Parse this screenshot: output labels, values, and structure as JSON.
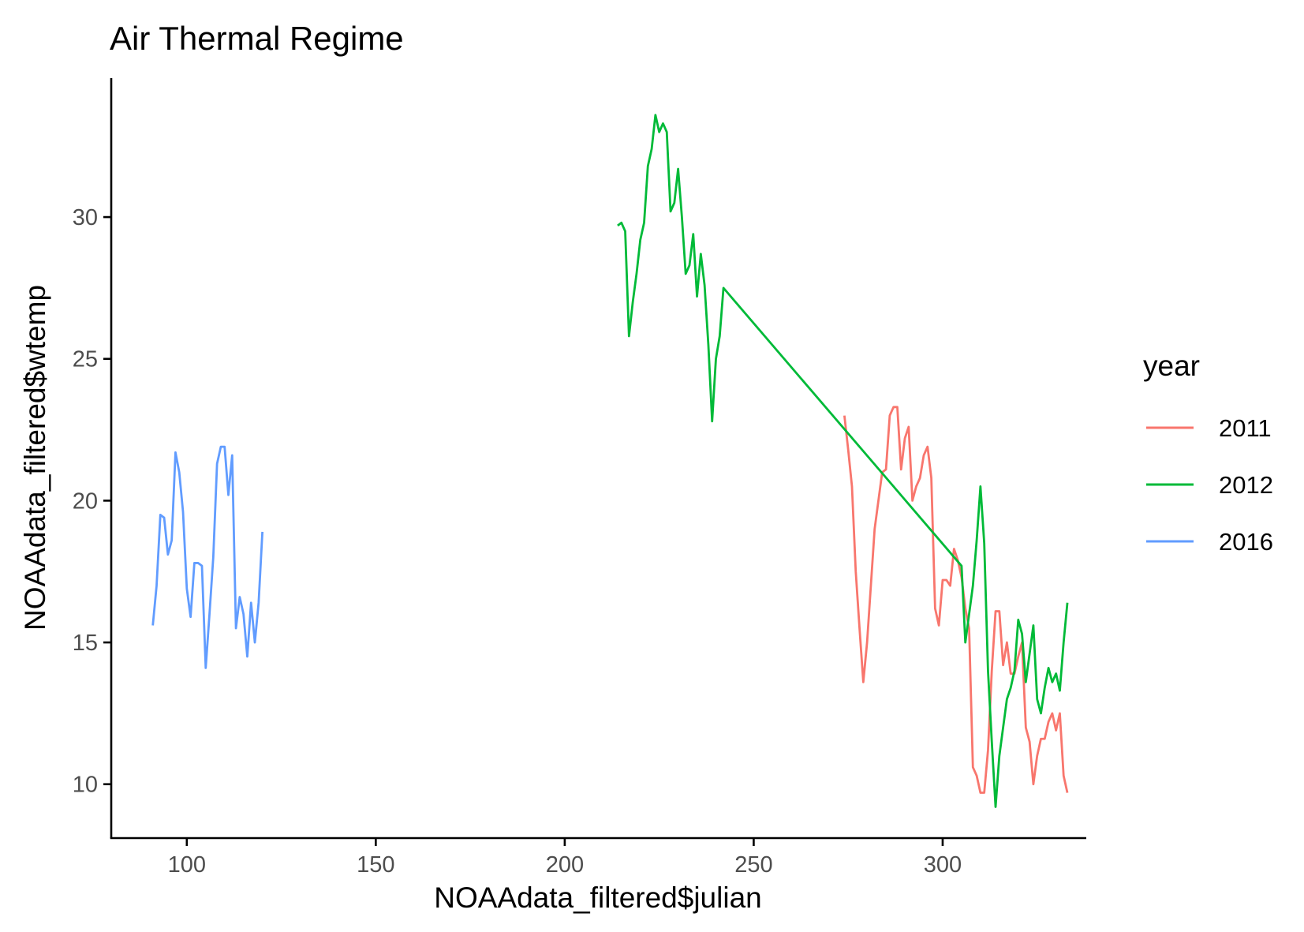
{
  "chart_data": {
    "type": "line",
    "title": "Air Thermal Regime",
    "xlabel": "NOAAdata_filtered$julian",
    "ylabel": "NOAAdata_filtered$wtemp",
    "xlim": [
      80,
      338
    ],
    "ylim": [
      8.1,
      34.9
    ],
    "x_ticks": [
      100,
      150,
      200,
      250,
      300
    ],
    "y_ticks": [
      10,
      15,
      20,
      25,
      30
    ],
    "grid": false,
    "legend": {
      "title": "year",
      "position": "right"
    },
    "series": [
      {
        "name": "2011",
        "color": "#F8766D",
        "points": [
          [
            274,
            23.0
          ],
          [
            275,
            21.8
          ],
          [
            276,
            20.5
          ],
          [
            277,
            17.5
          ],
          [
            278,
            15.5
          ],
          [
            279,
            13.6
          ],
          [
            280,
            15.0
          ],
          [
            281,
            17.0
          ],
          [
            282,
            19.0
          ],
          [
            283,
            20.0
          ],
          [
            284,
            21.0
          ],
          [
            285,
            21.1
          ],
          [
            286,
            23.0
          ],
          [
            287,
            23.3
          ],
          [
            288,
            23.3
          ],
          [
            289,
            21.1
          ],
          [
            290,
            22.2
          ],
          [
            291,
            22.6
          ],
          [
            292,
            20.0
          ],
          [
            293,
            20.5
          ],
          [
            294,
            20.8
          ],
          [
            295,
            21.6
          ],
          [
            296,
            21.9
          ],
          [
            297,
            20.8
          ],
          [
            298,
            16.2
          ],
          [
            299,
            15.6
          ],
          [
            300,
            17.2
          ],
          [
            301,
            17.2
          ],
          [
            302,
            17.0
          ],
          [
            303,
            18.3
          ],
          [
            304,
            17.9
          ],
          [
            305,
            17.3
          ],
          [
            306,
            16.2
          ],
          [
            307,
            15.5
          ],
          [
            308,
            10.6
          ],
          [
            309,
            10.3
          ],
          [
            310,
            9.7
          ],
          [
            311,
            9.7
          ],
          [
            312,
            11.2
          ],
          [
            313,
            14.0
          ],
          [
            314,
            16.1
          ],
          [
            315,
            16.1
          ],
          [
            316,
            14.2
          ],
          [
            317,
            15.0
          ],
          [
            318,
            13.9
          ],
          [
            319,
            13.9
          ],
          [
            320,
            14.5
          ],
          [
            321,
            15.0
          ],
          [
            322,
            12.0
          ],
          [
            323,
            11.5
          ],
          [
            324,
            10.0
          ],
          [
            325,
            11.0
          ],
          [
            326,
            11.6
          ],
          [
            327,
            11.6
          ],
          [
            328,
            12.2
          ],
          [
            329,
            12.5
          ],
          [
            330,
            11.9
          ],
          [
            331,
            12.5
          ],
          [
            332,
            10.3
          ],
          [
            333,
            9.7
          ]
        ]
      },
      {
        "name": "2012",
        "color": "#00BA38",
        "points": [
          [
            214,
            29.7
          ],
          [
            215,
            29.8
          ],
          [
            216,
            29.5
          ],
          [
            217,
            25.8
          ],
          [
            218,
            27.0
          ],
          [
            219,
            28.0
          ],
          [
            220,
            29.2
          ],
          [
            221,
            29.8
          ],
          [
            222,
            31.8
          ],
          [
            223,
            32.4
          ],
          [
            224,
            33.6
          ],
          [
            225,
            33.0
          ],
          [
            226,
            33.3
          ],
          [
            227,
            33.0
          ],
          [
            228,
            30.2
          ],
          [
            229,
            30.5
          ],
          [
            230,
            31.7
          ],
          [
            231,
            30.0
          ],
          [
            232,
            28.0
          ],
          [
            233,
            28.3
          ],
          [
            234,
            29.4
          ],
          [
            235,
            27.2
          ],
          [
            236,
            28.7
          ],
          [
            237,
            27.6
          ],
          [
            238,
            25.5
          ],
          [
            239,
            22.8
          ],
          [
            240,
            25.0
          ],
          [
            241,
            25.8
          ],
          [
            242,
            27.5
          ],
          [
            305,
            17.7
          ],
          [
            306,
            15.0
          ],
          [
            307,
            16.0
          ],
          [
            308,
            17.0
          ],
          [
            309,
            18.6
          ],
          [
            310,
            20.5
          ],
          [
            311,
            18.5
          ],
          [
            312,
            14.0
          ],
          [
            313,
            11.5
          ],
          [
            314,
            9.2
          ],
          [
            315,
            11.0
          ],
          [
            316,
            12.0
          ],
          [
            317,
            13.0
          ],
          [
            318,
            13.4
          ],
          [
            319,
            14.0
          ],
          [
            320,
            15.8
          ],
          [
            321,
            15.3
          ],
          [
            322,
            13.6
          ],
          [
            323,
            14.6
          ],
          [
            324,
            15.6
          ],
          [
            325,
            13.0
          ],
          [
            326,
            12.5
          ],
          [
            327,
            13.4
          ],
          [
            328,
            14.1
          ],
          [
            329,
            13.6
          ],
          [
            330,
            13.9
          ],
          [
            331,
            13.3
          ],
          [
            332,
            15.0
          ],
          [
            333,
            16.4
          ]
        ]
      },
      {
        "name": "2016",
        "color": "#619CFF",
        "points": [
          [
            91,
            15.6
          ],
          [
            92,
            17.0
          ],
          [
            93,
            19.5
          ],
          [
            94,
            19.4
          ],
          [
            95,
            18.1
          ],
          [
            96,
            18.6
          ],
          [
            97,
            21.7
          ],
          [
            98,
            21.0
          ],
          [
            99,
            19.6
          ],
          [
            100,
            16.9
          ],
          [
            101,
            15.9
          ],
          [
            102,
            17.8
          ],
          [
            103,
            17.8
          ],
          [
            104,
            17.7
          ],
          [
            105,
            14.1
          ],
          [
            106,
            16.0
          ],
          [
            107,
            18.0
          ],
          [
            108,
            21.3
          ],
          [
            109,
            21.9
          ],
          [
            110,
            21.9
          ],
          [
            111,
            20.2
          ],
          [
            112,
            21.6
          ],
          [
            113,
            15.5
          ],
          [
            114,
            16.6
          ],
          [
            115,
            16.0
          ],
          [
            116,
            14.5
          ],
          [
            117,
            16.4
          ],
          [
            118,
            15.0
          ],
          [
            119,
            16.4
          ],
          [
            120,
            18.9
          ]
        ]
      }
    ]
  }
}
